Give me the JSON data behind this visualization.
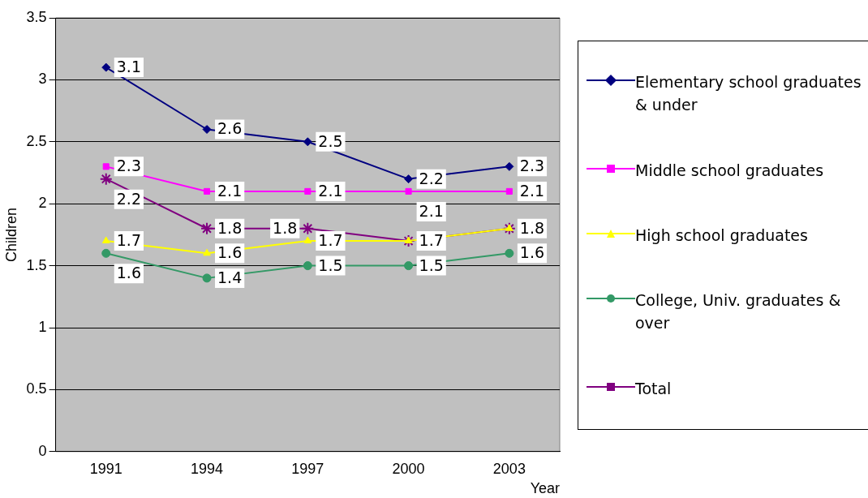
{
  "chart_data": {
    "type": "line",
    "xlabel": "Year",
    "ylabel": "Children",
    "categories": [
      "1991",
      "1994",
      "1997",
      "2000",
      "2003"
    ],
    "series": [
      {
        "name": "Elementary school graduates & under",
        "color": "#000080",
        "marker": "diamond",
        "values": [
          3.1,
          2.6,
          2.5,
          2.2,
          2.3
        ],
        "value_labels": [
          "3.1",
          "2.6",
          "2.5",
          "2.2",
          "2.3"
        ]
      },
      {
        "name": "Middle school graduates",
        "color": "#ff00ff",
        "marker": "square",
        "values": [
          2.3,
          2.1,
          2.1,
          2.1,
          2.1
        ],
        "value_labels": [
          "2.3",
          "2.1",
          "2.1",
          "2.1",
          "2.1"
        ]
      },
      {
        "name": "High school graduates",
        "color": "#ffff00",
        "marker": "triangle",
        "values": [
          1.7,
          1.6,
          1.7,
          1.7,
          1.8
        ],
        "value_labels": [
          "1.7",
          "1.6",
          "1.7",
          null,
          null
        ]
      },
      {
        "name": "College, Univ. graduates & over",
        "color": "#339966",
        "marker": "circle",
        "values": [
          1.6,
          1.4,
          1.5,
          1.5,
          1.6
        ],
        "value_labels": [
          "1.6",
          "1.4",
          "1.5",
          "1.5",
          "1.6"
        ]
      },
      {
        "name": "Total",
        "color": "#800080",
        "marker": "cross",
        "values": [
          2.2,
          1.8,
          1.8,
          1.7,
          1.8
        ],
        "value_labels": [
          "2.2",
          "1.8",
          "1.8",
          "1.7",
          "1.8"
        ]
      }
    ],
    "ylim": [
      0,
      3.5
    ],
    "yticks": [
      0,
      0.5,
      1,
      1.5,
      2,
      2.5,
      3,
      3.5
    ],
    "grid": "y",
    "legend": "right"
  }
}
